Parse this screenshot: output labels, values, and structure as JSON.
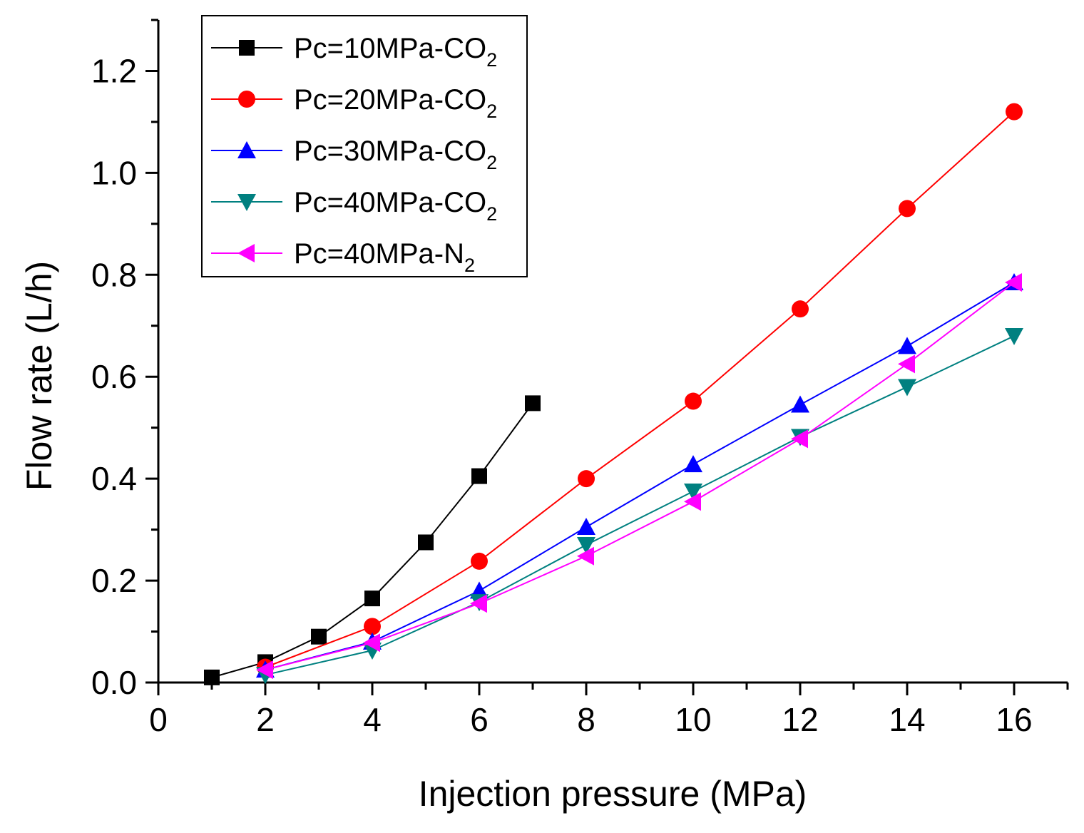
{
  "chart_data": {
    "type": "line",
    "title": "",
    "xlabel": "Injection pressure (MPa)",
    "ylabel": "Flow rate (L/h)",
    "xlim": [
      0,
      17
    ],
    "ylim": [
      0,
      1.3
    ],
    "x_ticks": [
      "0",
      "2",
      "4",
      "6",
      "8",
      "10",
      "12",
      "14",
      "16"
    ],
    "y_ticks": [
      "0.0",
      "0.2",
      "0.4",
      "0.6",
      "0.8",
      "1.0",
      "1.2"
    ],
    "legend_position": "top-left",
    "series": [
      {
        "name": "Pc=10MPa-CO2",
        "label_main": "Pc=10MPa-CO",
        "label_sub": "2",
        "color": "#000000",
        "marker": "square",
        "x": [
          1,
          2,
          3,
          4,
          5,
          6,
          7
        ],
        "values": [
          0.01,
          0.04,
          0.09,
          0.165,
          0.275,
          0.405,
          0.548
        ]
      },
      {
        "name": "Pc=20MPa-CO2",
        "label_main": "Pc=20MPa-CO",
        "label_sub": "2",
        "color": "#ff0000",
        "marker": "circle",
        "x": [
          2,
          4,
          6,
          8,
          10,
          12,
          14,
          16
        ],
        "values": [
          0.03,
          0.11,
          0.238,
          0.4,
          0.552,
          0.733,
          0.93,
          1.12
        ]
      },
      {
        "name": "Pc=30MPa-CO2",
        "label_main": "Pc=30MPa-CO",
        "label_sub": "2",
        "color": "#0000ff",
        "marker": "triangle-up",
        "x": [
          2,
          4,
          6,
          8,
          10,
          12,
          14,
          16
        ],
        "values": [
          0.025,
          0.08,
          0.18,
          0.305,
          0.428,
          0.545,
          0.66,
          0.785
        ]
      },
      {
        "name": "Pc=40MPa-CO2",
        "label_main": "Pc=40MPa-CO",
        "label_sub": "2",
        "color": "#008080",
        "marker": "triangle-down",
        "x": [
          2,
          4,
          6,
          8,
          10,
          12,
          14,
          16
        ],
        "values": [
          0.015,
          0.063,
          0.158,
          0.27,
          0.375,
          0.482,
          0.58,
          0.68
        ]
      },
      {
        "name": "Pc=40MPa-N2",
        "label_main": "Pc=40MPa-N",
        "label_sub": "2",
        "color": "#ff00ff",
        "marker": "triangle-left",
        "x": [
          2,
          4,
          6,
          8,
          10,
          12,
          14,
          16
        ],
        "values": [
          0.025,
          0.078,
          0.155,
          0.248,
          0.355,
          0.478,
          0.625,
          0.785
        ]
      }
    ]
  }
}
